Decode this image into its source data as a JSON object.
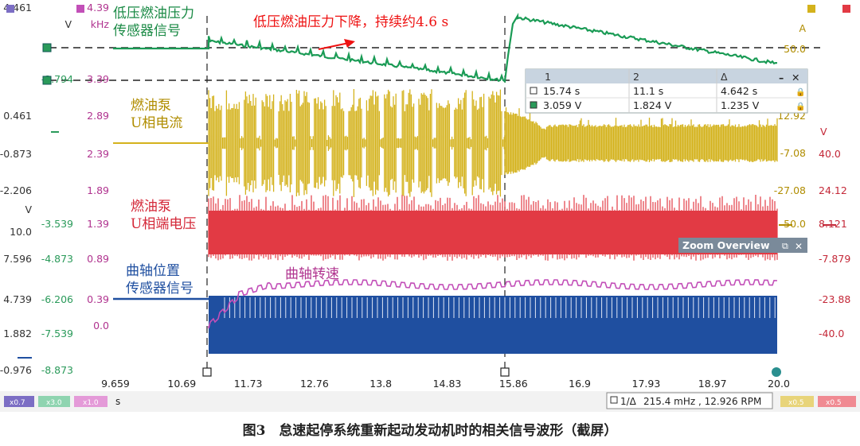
{
  "colors": {
    "green": "#1a9b55",
    "gold": "#d4b21c",
    "red": "#e23a44",
    "blue": "#1f4fa0",
    "magenta": "#c24fb8",
    "cursor_green": "#1a9b55",
    "annotation_red": "#e11"
  },
  "axes": {
    "col1": [
      "4.461",
      "V",
      "",
      "0.461",
      "-0.873",
      "-2.206",
      "V",
      "10.0",
      "7.596",
      "4.739",
      "1.882",
      "-0.976"
    ],
    "col2": [
      "-2.794",
      "-3.539",
      "-4.873",
      "-6.206",
      "-7.539",
      "-8.873"
    ],
    "col3": [
      "4.39",
      "kHz",
      "3.39",
      "2.89",
      "2.39",
      "1.89",
      "1.39",
      "0.89",
      "0.39",
      "0.0"
    ],
    "right_gold": [
      "A",
      "50.0",
      "12.92",
      "-7.08",
      "-27.08",
      "-50.0"
    ],
    "right_red": [
      "V",
      "40.0",
      "24.12",
      "8.121",
      "-7.879",
      "-23.88",
      "-40.0"
    ],
    "x_ticks": [
      "9.659",
      "10.69",
      "11.73",
      "12.76",
      "13.8",
      "14.83",
      "15.86",
      "16.9",
      "17.93",
      "18.97",
      "20.0"
    ],
    "x_unit": "s"
  },
  "labels": {
    "green_1": "低压燃油压力",
    "green_2": "传感器信号",
    "gold_1": "燃油泵",
    "gold_2": "U相电流",
    "red_1": "燃油泵",
    "red_2": "U相端电压",
    "blue_1": "曲轴位置",
    "blue_2": "传感器信号",
    "magenta": "曲轴转速",
    "annotation": "低压燃油压力下降，持续约4.6 s"
  },
  "cursor_table": {
    "headers": [
      "1",
      "2",
      "Δ"
    ],
    "rows": [
      [
        "15.74 s",
        "11.1 s",
        "4.642 s"
      ],
      [
        "3.059 V",
        "1.824 V",
        "1.235 V"
      ]
    ]
  },
  "zoom_overview": {
    "title": "Zoom Overview"
  },
  "status_bar": {
    "channels_left": [
      "x0.7",
      "x3.0",
      "x1.0"
    ],
    "unit": "s",
    "meas_prefix": "1/Δ",
    "measurement": "215.4 mHz , 12.926 RPM",
    "channels_right": [
      "x0.5",
      "x0.5"
    ]
  },
  "caption": "图3　怠速起停系统重新起动发动机时的相关信号波形（截屏）"
}
